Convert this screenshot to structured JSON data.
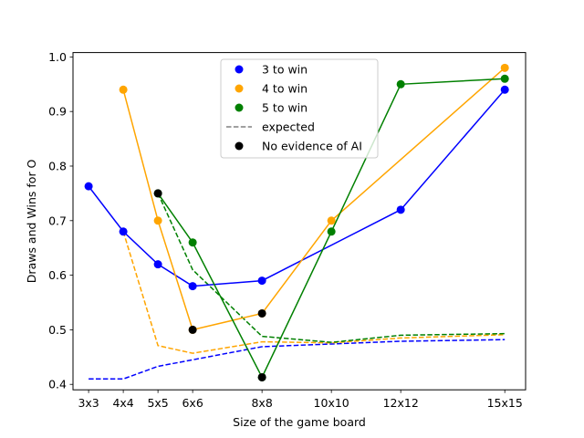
{
  "chart_data": {
    "type": "line",
    "title": "",
    "xlabel": "Size of the game board",
    "ylabel": "Draws and Wins for O",
    "x_categories": [
      "3x3",
      "4x4",
      "5x5",
      "6x6",
      "8x8",
      "10x10",
      "12x12",
      "15x15"
    ],
    "x_positions": [
      3,
      4,
      5,
      6,
      8,
      10,
      12,
      15
    ],
    "xlim": [
      2.55,
      15.6
    ],
    "ylim": [
      0.39,
      1.008
    ],
    "yticks": [
      0.4,
      0.5,
      0.6,
      0.7,
      0.8,
      0.9,
      1.0
    ],
    "ytick_labels": [
      "0.4",
      "0.5",
      "0.6",
      "0.7",
      "0.8",
      "0.9",
      "1.0"
    ],
    "grid": false,
    "legend_position": "top-center",
    "series": [
      {
        "name": "3 to win",
        "color": "#0000ff",
        "x": [
          3,
          4,
          5,
          6,
          8,
          12,
          15
        ],
        "y": [
          0.763,
          0.68,
          0.62,
          0.58,
          0.59,
          0.72,
          0.94
        ],
        "expected_x": [
          3,
          4,
          5,
          6,
          8,
          10,
          12,
          15
        ],
        "expected_y": [
          0.41,
          0.41,
          0.433,
          0.445,
          0.469,
          0.474,
          0.479,
          0.482
        ]
      },
      {
        "name": "4 to win",
        "color": "#ffa500",
        "x": [
          4,
          5,
          6,
          8,
          10,
          15
        ],
        "y": [
          0.94,
          0.7,
          0.5,
          0.53,
          0.7,
          0.98
        ],
        "expected_x": [
          4,
          5,
          6,
          8,
          10,
          12,
          15
        ],
        "expected_y": [
          0.68,
          0.471,
          0.457,
          0.478,
          0.476,
          0.485,
          0.491
        ]
      },
      {
        "name": "5 to win",
        "color": "#008000",
        "x": [
          5,
          6,
          8,
          10,
          12,
          15
        ],
        "y": [
          0.75,
          0.66,
          0.413,
          0.68,
          0.95,
          0.96
        ],
        "expected_x": [
          5,
          6,
          8,
          10,
          12,
          15
        ],
        "expected_y": [
          0.75,
          0.61,
          0.488,
          0.477,
          0.49,
          0.493
        ]
      }
    ],
    "expected_style": {
      "name": "expected",
      "legend_color": "#808080"
    },
    "no_ai_evidence": {
      "name": "No evidence of AI",
      "color": "#000000",
      "points": [
        {
          "x": 5,
          "y": 0.75
        },
        {
          "x": 6,
          "y": 0.5
        },
        {
          "x": 8,
          "y": 0.53
        },
        {
          "x": 8,
          "y": 0.413
        }
      ]
    },
    "legend": [
      "3 to win",
      "4 to win",
      "5 to win",
      "expected",
      "No evidence of AI"
    ]
  }
}
